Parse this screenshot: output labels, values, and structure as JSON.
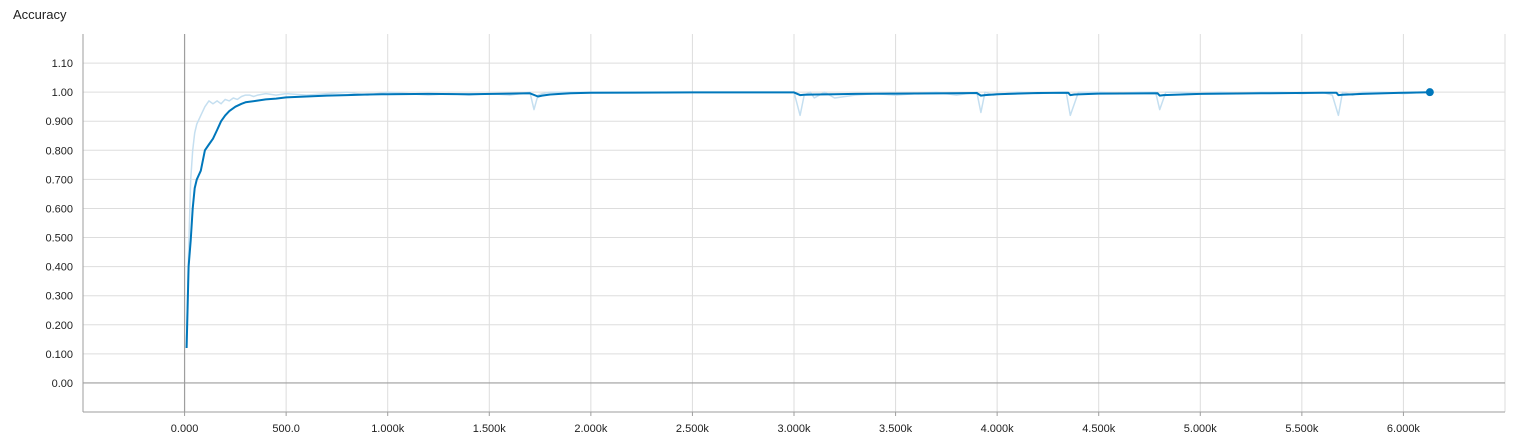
{
  "chart_data": {
    "type": "line",
    "title": "Accuracy",
    "xlabel": "",
    "ylabel": "",
    "xlim": [
      -500,
      6500
    ],
    "ylim": [
      -0.1,
      1.2
    ],
    "x_ticks": [
      0,
      500,
      1000,
      1500,
      2000,
      2500,
      3000,
      3500,
      4000,
      4500,
      5000,
      5500,
      6000
    ],
    "x_tick_labels": [
      "0.000",
      "500.0",
      "1.000k",
      "1.500k",
      "2.000k",
      "2.500k",
      "3.000k",
      "3.500k",
      "4.000k",
      "4.500k",
      "5.000k",
      "5.500k",
      "6.000k"
    ],
    "y_ticks": [
      0,
      0.1,
      0.2,
      0.3,
      0.4,
      0.5,
      0.6,
      0.7,
      0.8,
      0.9,
      1.0,
      1.1
    ],
    "y_tick_labels": [
      "0.00",
      "0.100",
      "0.200",
      "0.300",
      "0.400",
      "0.500",
      "0.600",
      "0.700",
      "0.800",
      "0.900",
      "1.00",
      "1.10"
    ],
    "grid": true,
    "legend": "none",
    "colors": {
      "smoothed": "#0077bb",
      "raw": "#c5dff0",
      "grid": "#dddddd",
      "axis": "#9e9e9e"
    },
    "series": [
      {
        "role": "raw",
        "x": [
          10,
          20,
          30,
          40,
          50,
          60,
          80,
          100,
          120,
          140,
          160,
          180,
          200,
          220,
          240,
          260,
          280,
          300,
          320,
          340,
          360,
          400,
          450,
          500,
          600,
          700,
          800,
          900,
          1000,
          1100,
          1200,
          1300,
          1400,
          1500,
          1600,
          1700,
          1720,
          1740,
          1760,
          1800,
          1900,
          2000,
          2200,
          2400,
          2600,
          2800,
          3000,
          3030,
          3050,
          3080,
          3100,
          3150,
          3200,
          3300,
          3400,
          3500,
          3600,
          3700,
          3800,
          3900,
          3920,
          3940,
          3980,
          4100,
          4200,
          4300,
          4340,
          4360,
          4400,
          4500,
          4600,
          4700,
          4780,
          4800,
          4830,
          4900,
          5000,
          5100,
          5200,
          5300,
          5400,
          5500,
          5600,
          5650,
          5680,
          5700,
          5750,
          5800,
          5900,
          6000,
          6100,
          6130
        ],
        "y": [
          0.15,
          0.45,
          0.7,
          0.8,
          0.86,
          0.89,
          0.92,
          0.95,
          0.97,
          0.96,
          0.97,
          0.96,
          0.975,
          0.97,
          0.98,
          0.975,
          0.985,
          0.99,
          0.99,
          0.985,
          0.99,
          0.995,
          0.99,
          0.995,
          0.99,
          0.995,
          1.0,
          0.99,
          1.0,
          0.995,
          0.99,
          0.995,
          0.99,
          0.995,
          0.99,
          1.0,
          0.94,
          0.99,
          0.995,
          1.0,
          1.0,
          1.0,
          1.0,
          1.0,
          1.0,
          1.0,
          1.0,
          0.92,
          0.99,
          1.0,
          0.98,
          1.0,
          0.98,
          0.99,
          0.995,
          0.99,
          0.995,
          1.0,
          0.99,
          1.0,
          0.93,
          1.0,
          0.99,
          1.0,
          0.995,
          1.0,
          1.0,
          0.92,
          1.0,
          1.0,
          0.995,
          1.0,
          1.0,
          0.94,
          1.0,
          1.0,
          0.995,
          1.0,
          0.995,
          1.0,
          1.0,
          0.995,
          1.0,
          0.99,
          0.92,
          1.0,
          0.99,
          1.0,
          1.0,
          0.995,
          1.0,
          1.0
        ]
      },
      {
        "role": "smoothed",
        "x": [
          10,
          20,
          30,
          40,
          50,
          60,
          80,
          100,
          120,
          140,
          160,
          180,
          200,
          220,
          250,
          280,
          300,
          350,
          400,
          450,
          500,
          600,
          700,
          800,
          900,
          1000,
          1200,
          1400,
          1600,
          1700,
          1740,
          1760,
          1800,
          1900,
          2000,
          2500,
          3000,
          3030,
          3050,
          3100,
          3200,
          3300,
          3500,
          3800,
          3900,
          3920,
          3940,
          4000,
          4200,
          4350,
          4360,
          4380,
          4500,
          4790,
          4800,
          4820,
          5000,
          5300,
          5600,
          5670,
          5680,
          5700,
          5800,
          6000,
          6130
        ],
        "y": [
          0.12,
          0.4,
          0.49,
          0.6,
          0.67,
          0.7,
          0.73,
          0.8,
          0.82,
          0.84,
          0.87,
          0.9,
          0.92,
          0.935,
          0.95,
          0.96,
          0.965,
          0.97,
          0.975,
          0.978,
          0.982,
          0.985,
          0.988,
          0.99,
          0.992,
          0.993,
          0.994,
          0.993,
          0.995,
          0.996,
          0.985,
          0.988,
          0.992,
          0.996,
          0.998,
          0.999,
          0.999,
          0.99,
          0.991,
          0.992,
          0.993,
          0.994,
          0.995,
          0.996,
          0.997,
          0.988,
          0.99,
          0.993,
          0.997,
          0.998,
          0.99,
          0.992,
          0.995,
          0.996,
          0.988,
          0.99,
          0.994,
          0.996,
          0.998,
          0.998,
          0.99,
          0.991,
          0.994,
          0.998,
          1.0
        ]
      }
    ]
  }
}
